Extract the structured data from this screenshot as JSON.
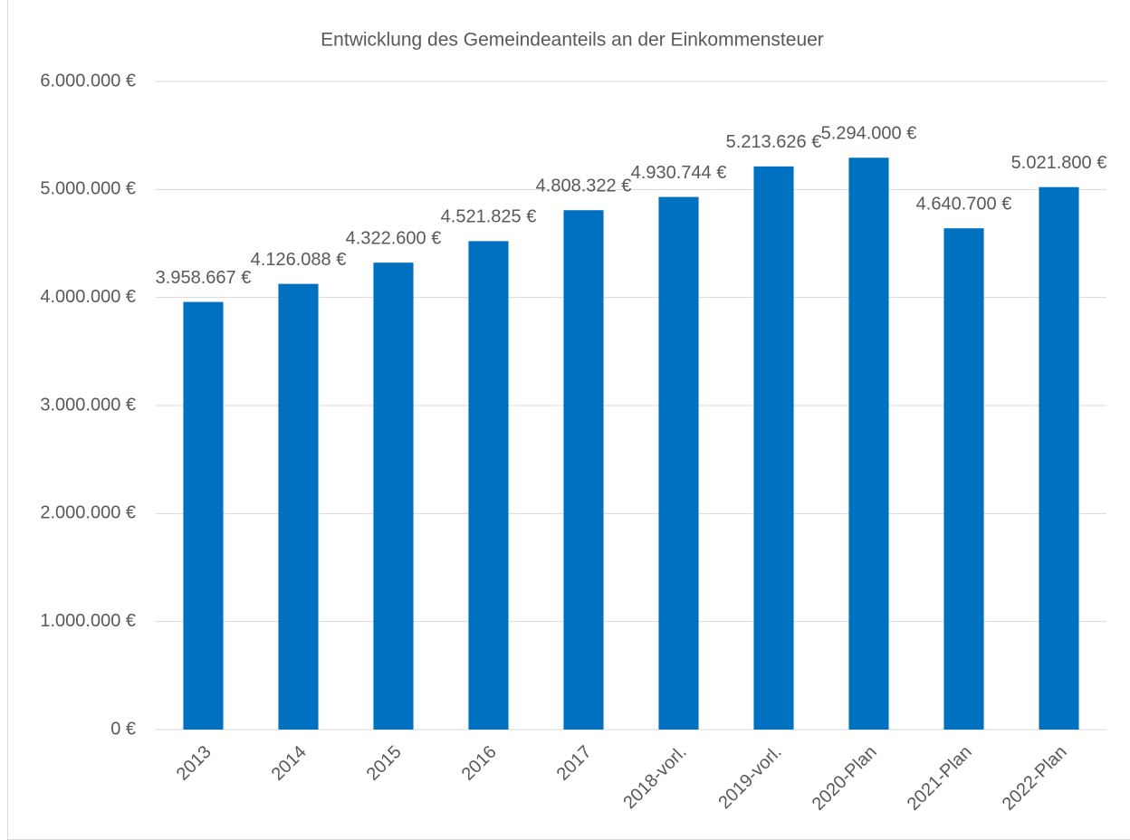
{
  "chart_data": {
    "type": "bar",
    "title": "Entwicklung des Gemeindeanteils  an der Einkommensteuer",
    "categories": [
      "2013",
      "2014",
      "2015",
      "2016",
      "2017",
      "2018-vorl.",
      "2019-vorl.",
      "2020-Plan",
      "2021-Plan",
      "2022-Plan"
    ],
    "values": [
      3958667,
      4126088,
      4322600,
      4521825,
      4808322,
      4930744,
      5213626,
      5294000,
      4640700,
      5021800
    ],
    "value_labels": [
      "3.958.667 €",
      "4.126.088 €",
      "4.322.600 €",
      "4.521.825 €",
      "4.808.322 €",
      "4.930.744 €",
      "5.213.626 €",
      "5.294.000 €",
      "4.640.700 €",
      "5.021.800 €"
    ],
    "color": "#0070c0",
    "ylim": [
      0,
      6000000
    ],
    "yticks": [
      {
        "value": 0,
        "label": "0 €"
      },
      {
        "value": 1000000,
        "label": "1.000.000 €"
      },
      {
        "value": 2000000,
        "label": "2.000.000 €"
      },
      {
        "value": 3000000,
        "label": "3.000.000 €"
      },
      {
        "value": 4000000,
        "label": "4.000.000 €"
      },
      {
        "value": 5000000,
        "label": "5.000.000 €"
      },
      {
        "value": 6000000,
        "label": "6.000.000 €"
      }
    ],
    "grid": true
  }
}
